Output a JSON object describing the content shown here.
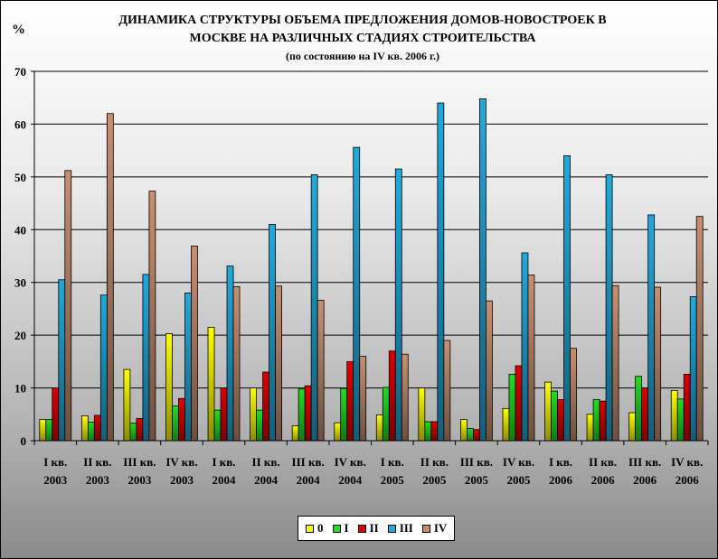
{
  "chart_data": {
    "type": "bar",
    "title": "ДИНАМИКА СТРУКТУРЫ ОБЪЕМА ПРЕДЛОЖЕНИЯ ДОМОВ-НОВОСТРОЕК В МОСКВЕ НА РАЗЛИЧНЫХ СТАДИЯХ СТРОИТЕЛЬСТВА",
    "title_lines": [
      "ДИНАМИКА СТРУКТУРЫ ОБЪЕМА ПРЕДЛОЖЕНИЯ ДОМОВ-НОВОСТРОЕК В",
      "МОСКВЕ НА РАЗЛИЧНЫХ СТАДИЯХ СТРОИТЕЛЬСТВА"
    ],
    "subtitle": "(по состоянию на IV кв. 2006 г.)",
    "ylabel": "%",
    "xlabel": "",
    "ylim": [
      0,
      70
    ],
    "yticks": [
      0,
      10,
      20,
      30,
      40,
      50,
      60,
      70
    ],
    "grid": true,
    "legend_position": "bottom",
    "categories": [
      [
        "I кв.",
        "2003"
      ],
      [
        "II кв.",
        "2003"
      ],
      [
        "III кв.",
        "2003"
      ],
      [
        "IV кв.",
        "2003"
      ],
      [
        "I кв.",
        "2004"
      ],
      [
        "II кв.",
        "2004"
      ],
      [
        "III кв.",
        "2004"
      ],
      [
        "IV кв.",
        "2004"
      ],
      [
        "I кв.",
        "2005"
      ],
      [
        "II кв.",
        "2005"
      ],
      [
        "III кв.",
        "2005"
      ],
      [
        "IV кв.",
        "2005"
      ],
      [
        "I кв.",
        "2006"
      ],
      [
        "II кв.",
        "2006"
      ],
      [
        "III кв.",
        "2006"
      ],
      [
        "IV кв.",
        "2006"
      ]
    ],
    "series": [
      {
        "name": "0",
        "color": "#ffff00",
        "values": [
          4.0,
          4.7,
          13.5,
          20.3,
          21.5,
          10.0,
          2.8,
          3.4,
          4.9,
          10.0,
          4.0,
          6.1,
          11.1,
          5.0,
          5.3,
          9.5
        ]
      },
      {
        "name": "I",
        "color": "#22dd22",
        "values": [
          4.0,
          3.5,
          3.3,
          6.6,
          5.8,
          5.8,
          9.8,
          9.9,
          10.1,
          3.6,
          2.3,
          12.6,
          9.4,
          7.8,
          12.2,
          7.9
        ]
      },
      {
        "name": "II",
        "color": "#e00000",
        "values": [
          10.0,
          4.8,
          4.2,
          8.0,
          10.0,
          13.0,
          10.4,
          15.0,
          17.0,
          3.6,
          2.1,
          14.2,
          7.8,
          7.5,
          10.0,
          12.6
        ]
      },
      {
        "name": "III",
        "color": "#22aadd",
        "values": [
          30.5,
          27.6,
          31.5,
          28.0,
          33.1,
          41.0,
          50.4,
          55.6,
          51.5,
          64.0,
          64.8,
          35.6,
          54.0,
          50.4,
          42.8,
          27.3
        ]
      },
      {
        "name": "IV",
        "color": "#c89070",
        "values": [
          51.2,
          62.0,
          47.3,
          36.9,
          29.2,
          29.3,
          26.6,
          16.0,
          16.4,
          19.0,
          26.5,
          31.4,
          17.5,
          29.4,
          29.1,
          42.5
        ]
      }
    ]
  }
}
